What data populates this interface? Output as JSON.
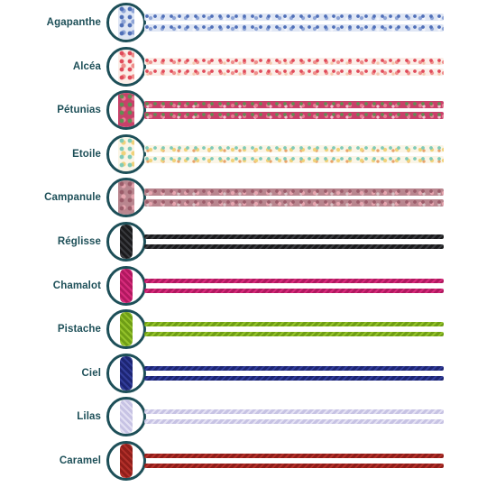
{
  "swatches": [
    {
      "label": "Agapanthe",
      "kind": "liberty",
      "colors": [
        "#dfe6f4",
        "#8ea4d6",
        "#4f6fb8",
        "#f2f4fb"
      ]
    },
    {
      "label": "Alcéa",
      "kind": "liberty",
      "colors": [
        "#fbeee8",
        "#ef8e8c",
        "#e04a5a",
        "#f6c9b0"
      ]
    },
    {
      "label": "Pétunias",
      "kind": "liberty",
      "colors": [
        "#c9406a",
        "#e77d93",
        "#5f8f52",
        "#f3c2cf"
      ]
    },
    {
      "label": "Etoile",
      "kind": "liberty",
      "colors": [
        "#fbf5e6",
        "#f1d27a",
        "#7fcbb8",
        "#e9a36b"
      ]
    },
    {
      "label": "Campanule",
      "kind": "liberty",
      "colors": [
        "#b9868f",
        "#e7a6b0",
        "#9b5c6a",
        "#d9c3c6"
      ]
    },
    {
      "label": "Réglisse",
      "kind": "cord",
      "colors": [
        "#1b1b1d",
        "#3a3b3f"
      ]
    },
    {
      "label": "Chamalot",
      "kind": "cord",
      "colors": [
        "#b0185f",
        "#d72b7b"
      ]
    },
    {
      "label": "Pistache",
      "kind": "cord",
      "colors": [
        "#6f9e16",
        "#93c22a"
      ]
    },
    {
      "label": "Ciel",
      "kind": "cord",
      "colors": [
        "#1d2573",
        "#323d9a"
      ]
    },
    {
      "label": "Lilas",
      "kind": "cord",
      "colors": [
        "#c7c3e4",
        "#e3e0f3"
      ]
    },
    {
      "label": "Caramel",
      "kind": "cord",
      "colors": [
        "#8f1e1a",
        "#b3302a"
      ]
    }
  ]
}
